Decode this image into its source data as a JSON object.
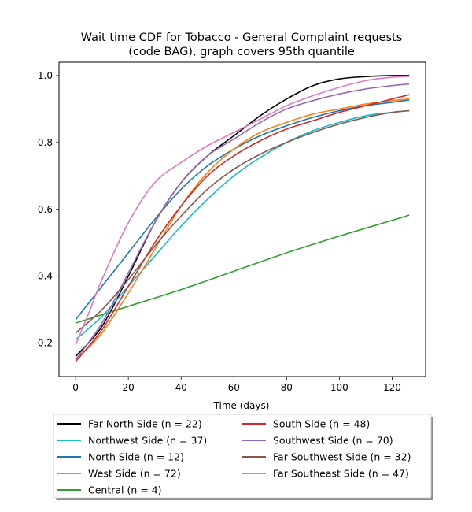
{
  "chart_data": {
    "type": "line",
    "title_lines": [
      "Wait time CDF for Tobacco - General Complaint  requests",
      "(code BAG), graph covers 95th quantile"
    ],
    "xlabel": "Time (days)",
    "ylabel": "",
    "xlim": [
      -6.3,
      132.7
    ],
    "ylim": [
      0.1,
      1.04
    ],
    "xticks": [
      0,
      20,
      40,
      60,
      80,
      100,
      120
    ],
    "yticks": [
      0.2,
      0.4,
      0.6,
      0.8,
      1.0
    ],
    "ytick_labels": [
      "0.2",
      "0.4",
      "0.6",
      "0.8",
      "1.0"
    ],
    "grid": false,
    "legend_position": "below plot",
    "series": [
      {
        "name": "Far North Side (n = 22)",
        "color": "#000000",
        "x": [
          0,
          10,
          20,
          30,
          40,
          50,
          60,
          70,
          80,
          90,
          100,
          110,
          120,
          126.5
        ],
        "y": [
          0.16,
          0.25,
          0.4,
          0.56,
          0.68,
          0.76,
          0.82,
          0.88,
          0.93,
          0.97,
          0.99,
          0.997,
          1.0,
          1.0
        ]
      },
      {
        "name": "Northwest Side (n = 37)",
        "color": "#17becf",
        "x": [
          0,
          10,
          20,
          30,
          40,
          50,
          60,
          70,
          80,
          90,
          100,
          110,
          120,
          126.5
        ],
        "y": [
          0.21,
          0.28,
          0.37,
          0.46,
          0.55,
          0.63,
          0.7,
          0.755,
          0.8,
          0.835,
          0.86,
          0.88,
          0.89,
          0.895
        ]
      },
      {
        "name": "North Side (n = 12)",
        "color": "#1f77b4",
        "x": [
          0,
          10,
          20,
          30,
          40,
          50,
          60,
          70,
          80,
          90,
          100,
          110,
          120,
          126.5
        ],
        "y": [
          0.27,
          0.37,
          0.47,
          0.57,
          0.66,
          0.73,
          0.78,
          0.82,
          0.85,
          0.875,
          0.895,
          0.91,
          0.92,
          0.927
        ]
      },
      {
        "name": "West Side (n = 72)",
        "color": "#ff7f0e",
        "x": [
          0,
          10,
          20,
          30,
          40,
          50,
          60,
          70,
          80,
          90,
          100,
          110,
          120,
          126.5
        ],
        "y": [
          0.15,
          0.23,
          0.35,
          0.48,
          0.61,
          0.71,
          0.78,
          0.83,
          0.86,
          0.885,
          0.9,
          0.915,
          0.925,
          0.93
        ]
      },
      {
        "name": "Central (n = 4)",
        "color": "#2ca02c",
        "x": [
          0,
          20,
          40,
          60,
          80,
          100,
          120,
          126.5
        ],
        "y": [
          0.26,
          0.31,
          0.36,
          0.415,
          0.47,
          0.52,
          0.567,
          0.583
        ]
      },
      {
        "name": "South Side (n = 48)",
        "color": "#d62728",
        "x": [
          0,
          10,
          20,
          30,
          40,
          50,
          60,
          70,
          80,
          90,
          100,
          110,
          120,
          126.5
        ],
        "y": [
          0.145,
          0.24,
          0.37,
          0.5,
          0.61,
          0.7,
          0.76,
          0.805,
          0.84,
          0.865,
          0.89,
          0.91,
          0.93,
          0.943
        ]
      },
      {
        "name": "Southwest Side (n = 70)",
        "color": "#9467bd",
        "x": [
          0,
          10,
          20,
          30,
          40,
          50,
          60,
          70,
          80,
          90,
          100,
          110,
          120,
          126.5
        ],
        "y": [
          0.15,
          0.26,
          0.41,
          0.56,
          0.68,
          0.76,
          0.81,
          0.86,
          0.9,
          0.925,
          0.945,
          0.96,
          0.97,
          0.975
        ]
      },
      {
        "name": "Far Southwest Side (n = 32)",
        "color": "#8c564b",
        "x": [
          0,
          10,
          20,
          30,
          40,
          50,
          60,
          70,
          80,
          90,
          100,
          110,
          120,
          126.5
        ],
        "y": [
          0.23,
          0.3,
          0.39,
          0.49,
          0.58,
          0.66,
          0.72,
          0.765,
          0.8,
          0.83,
          0.855,
          0.875,
          0.89,
          0.895
        ]
      },
      {
        "name": "Far Southeast Side (n = 47)",
        "color": "#e377c2",
        "x": [
          0,
          5,
          10,
          20,
          30,
          40,
          50,
          60,
          70,
          80,
          90,
          100,
          110,
          120,
          126.5
        ],
        "y": [
          0.195,
          0.29,
          0.39,
          0.56,
          0.68,
          0.74,
          0.79,
          0.83,
          0.87,
          0.91,
          0.94,
          0.965,
          0.985,
          0.995,
          0.998
        ]
      }
    ]
  }
}
